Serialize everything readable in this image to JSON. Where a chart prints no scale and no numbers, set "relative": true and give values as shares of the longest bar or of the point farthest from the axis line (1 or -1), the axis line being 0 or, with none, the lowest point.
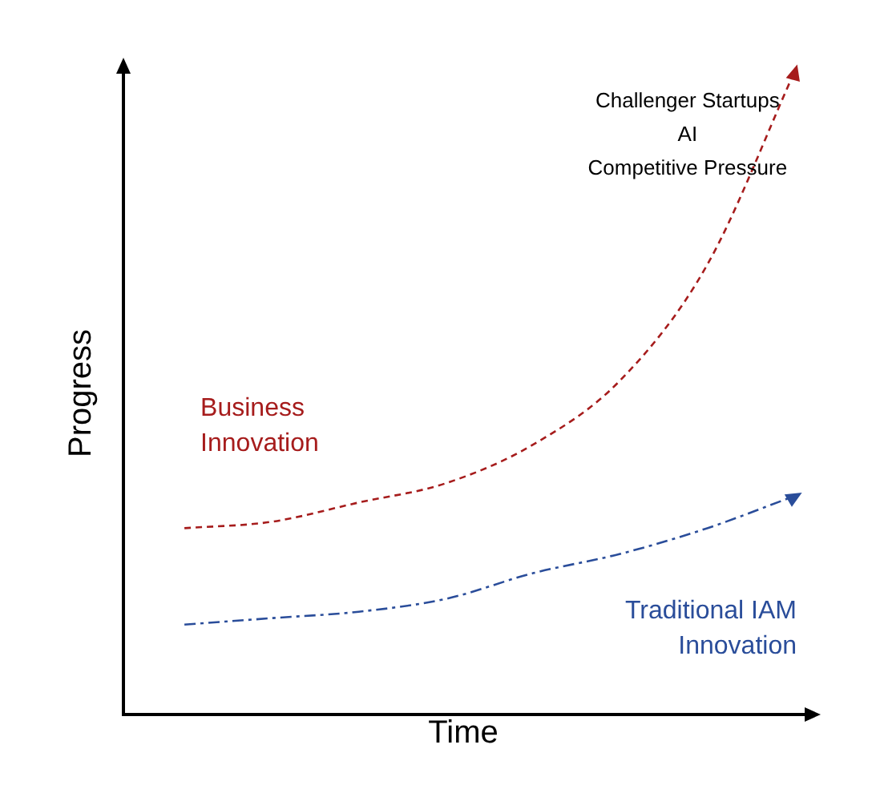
{
  "chart_data": {
    "type": "line",
    "relative": true,
    "xlabel": "Time",
    "ylabel": "Progress",
    "legend": false,
    "grid": false,
    "line_style": "dashed",
    "marker": "none",
    "categories": [
      null,
      null,
      null,
      null,
      null,
      null,
      null,
      null
    ],
    "series": [
      {
        "name": "Business Innovation",
        "color": "#a61c1c",
        "values": [
          0.29,
          0.3,
          0.33,
          0.36,
          0.42,
          0.52,
          0.7,
          1.0
        ]
      },
      {
        "name": "Traditional IAM Innovation",
        "color": "#2a4d9a",
        "values": [
          0.14,
          0.15,
          0.16,
          0.18,
          0.22,
          0.25,
          0.29,
          0.34
        ]
      }
    ],
    "annotations": [
      "Challenger Startups",
      "AI",
      "Competitive Pressure"
    ]
  }
}
